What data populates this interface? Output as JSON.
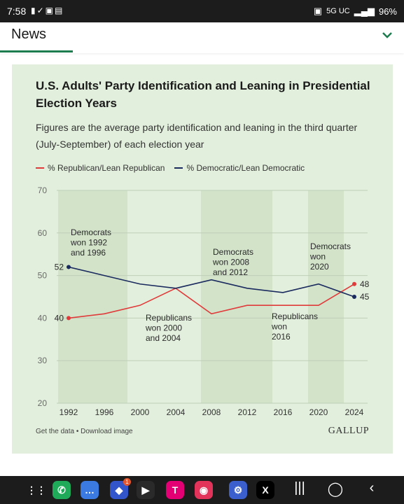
{
  "status_bar": {
    "time": "7:58",
    "network": "5G UC",
    "battery": "96%"
  },
  "header": {
    "title": "News"
  },
  "card": {
    "title": "U.S. Adults' Party Identification and Leaning in Presidential Election Years",
    "subtitle": "Figures are the average party identification and leaning in the third quarter (July-September) of each election year",
    "footer_links": "Get the data • Download image",
    "brand": "GALLUP"
  },
  "chart_data": {
    "type": "line",
    "x": [
      "1992",
      "1996",
      "2000",
      "2004",
      "2008",
      "2012",
      "2016",
      "2020",
      "2024"
    ],
    "series": [
      {
        "name": "% Republican/Lean Republican",
        "color": "#e03a3a",
        "values": [
          40,
          41,
          43,
          47,
          41,
          43,
          43,
          43,
          48
        ]
      },
      {
        "name": "% Democratic/Lean Democratic",
        "color": "#1a2a5e",
        "values": [
          52,
          50,
          48,
          47,
          49,
          47,
          46,
          48,
          45
        ]
      }
    ],
    "yticks": [
      20,
      30,
      40,
      50,
      60,
      70
    ],
    "ylim": [
      20,
      70
    ],
    "end_labels": {
      "republican_start": "40",
      "democratic_start": "52",
      "republican_end": "48",
      "democratic_end": "45"
    },
    "shaded_periods": [
      {
        "from": "1992",
        "to": "2000",
        "label": [
          "Democrats",
          "won 1992",
          "and 1996"
        ]
      },
      {
        "from": "2000",
        "to": "2008",
        "label": [
          "Republicans",
          "won 2000",
          "and 2004"
        ]
      },
      {
        "from": "2008",
        "to": "2016",
        "label": [
          "Democrats",
          "won 2008",
          "and 2012"
        ]
      },
      {
        "from": "2016",
        "to": "2020",
        "label": [
          "Republicans",
          "won",
          "2016"
        ]
      },
      {
        "from": "2020",
        "to": "2024",
        "label": [
          "Democrats",
          "won",
          "2020"
        ]
      }
    ]
  },
  "nav_bar": {
    "apps": [
      {
        "name": "app-drawer-icon",
        "glyph": "⋮⋮",
        "color": "#1c1c1c"
      },
      {
        "name": "phone-app-icon",
        "glyph": "✆",
        "color": "#1faa59"
      },
      {
        "name": "messages-app-icon",
        "glyph": "…",
        "color": "#3b7ae0"
      },
      {
        "name": "browser-app-icon",
        "glyph": "◆",
        "color": "#3355cc",
        "badge": "1"
      },
      {
        "name": "play-store-app-icon",
        "glyph": "▶",
        "color": "#2a2a2a"
      },
      {
        "name": "t-mobile-app-icon",
        "glyph": "T",
        "color": "#e20074"
      },
      {
        "name": "camera-app-icon",
        "glyph": "◉",
        "color": "#e2345a"
      },
      {
        "name": "settings-app-icon",
        "glyph": "⚙",
        "color": "#3b5fcc"
      },
      {
        "name": "x-app-icon",
        "glyph": "X",
        "color": "#000000"
      }
    ]
  }
}
